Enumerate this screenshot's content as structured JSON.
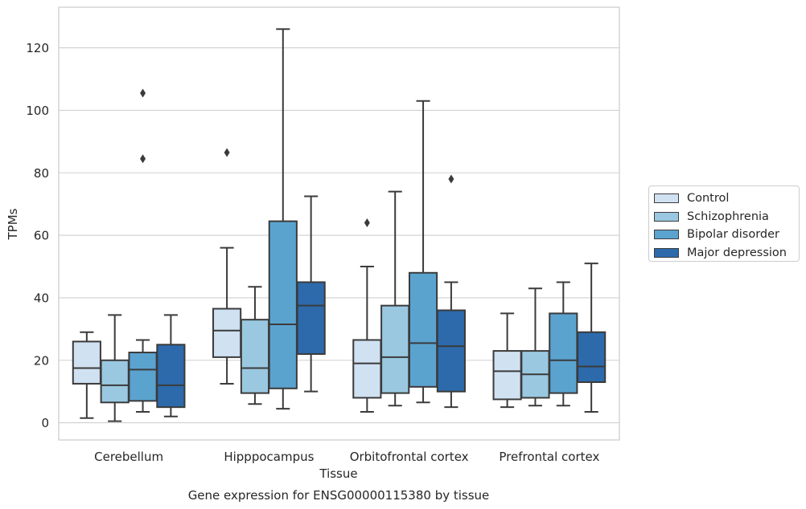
{
  "chart_data": {
    "type": "box",
    "title": "",
    "xlabel": "Tissue",
    "ylabel": "TPMs",
    "caption": "Gene expression for ENSG00000115380 by tissue",
    "ylim": [
      -5.5,
      133
    ],
    "yticks": [
      0,
      20,
      40,
      60,
      80,
      100,
      120
    ],
    "grid": "horizontal",
    "legend_position": "right",
    "categories": [
      "Cerebellum",
      "Hipppocampus",
      "Orbitofrontal cortex",
      "Prefrontal cortex"
    ],
    "series": [
      {
        "name": "Control",
        "color": "#d0e1f2",
        "boxes": [
          {
            "whisker_low": 1.5,
            "q1": 12.5,
            "median": 17.5,
            "q3": 26,
            "whisker_high": 29,
            "outliers": []
          },
          {
            "whisker_low": 12.5,
            "q1": 21,
            "median": 29.5,
            "q3": 36.5,
            "whisker_high": 56,
            "outliers": [
              86.5
            ]
          },
          {
            "whisker_low": 3.5,
            "q1": 8,
            "median": 19,
            "q3": 26.5,
            "whisker_high": 50,
            "outliers": [
              64
            ]
          },
          {
            "whisker_low": 5,
            "q1": 7.5,
            "median": 16.5,
            "q3": 23,
            "whisker_high": 35,
            "outliers": []
          }
        ]
      },
      {
        "name": "Schizophrenia",
        "color": "#9ac8e0",
        "boxes": [
          {
            "whisker_low": 0.5,
            "q1": 6.5,
            "median": 12,
            "q3": 20,
            "whisker_high": 34.5,
            "outliers": []
          },
          {
            "whisker_low": 6,
            "q1": 9.5,
            "median": 17.5,
            "q3": 33,
            "whisker_high": 43.5,
            "outliers": []
          },
          {
            "whisker_low": 5.5,
            "q1": 9.5,
            "median": 21,
            "q3": 37.5,
            "whisker_high": 74,
            "outliers": []
          },
          {
            "whisker_low": 5.5,
            "q1": 8,
            "median": 15.5,
            "q3": 23,
            "whisker_high": 43,
            "outliers": []
          }
        ]
      },
      {
        "name": "Bipolar disorder",
        "color": "#5ba3cf",
        "boxes": [
          {
            "whisker_low": 3.5,
            "q1": 7,
            "median": 17,
            "q3": 22.5,
            "whisker_high": 26.5,
            "outliers": [
              84.5,
              105.5
            ]
          },
          {
            "whisker_low": 4.5,
            "q1": 11,
            "median": 31.5,
            "q3": 64.5,
            "whisker_high": 126,
            "outliers": []
          },
          {
            "whisker_low": 6.5,
            "q1": 11.5,
            "median": 25.5,
            "q3": 48,
            "whisker_high": 103,
            "outliers": []
          },
          {
            "whisker_low": 5.5,
            "q1": 9.5,
            "median": 20,
            "q3": 35,
            "whisker_high": 45,
            "outliers": []
          }
        ]
      },
      {
        "name": "Major depression",
        "color": "#2c6aab",
        "boxes": [
          {
            "whisker_low": 2,
            "q1": 5,
            "median": 12,
            "q3": 25,
            "whisker_high": 34.5,
            "outliers": []
          },
          {
            "whisker_low": 10,
            "q1": 22,
            "median": 37.5,
            "q3": 45,
            "whisker_high": 72.5,
            "outliers": []
          },
          {
            "whisker_low": 5,
            "q1": 10,
            "median": 24.5,
            "q3": 36,
            "whisker_high": 45,
            "outliers": [
              78
            ]
          },
          {
            "whisker_low": 3.5,
            "q1": 13,
            "median": 18,
            "q3": 29,
            "whisker_high": 51,
            "outliers": []
          }
        ]
      }
    ]
  }
}
